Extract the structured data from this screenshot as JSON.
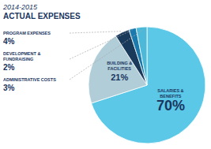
{
  "chart_data": {
    "type": "pie",
    "title": "2014-2015",
    "subtitle": "ACTUAL EXPENSES",
    "categories": [
      "SALARIES &\nBENEFITS",
      "BUILDING &\nFACILITIES",
      "PROGRAM EXPENSES",
      "DEVELOPMENT &\nFUNDRAISING",
      "ADMINISTRATIVE COSTS"
    ],
    "values": [
      70,
      21,
      4,
      2,
      3
    ],
    "value_labels": [
      "70%",
      "21%",
      "4%",
      "2%",
      "3%"
    ],
    "colors": [
      "#5bc8e8",
      "#b0cdd8",
      "#1a3a5c",
      "#1a7aad",
      "#4db8d8"
    ],
    "data_labels": true
  }
}
